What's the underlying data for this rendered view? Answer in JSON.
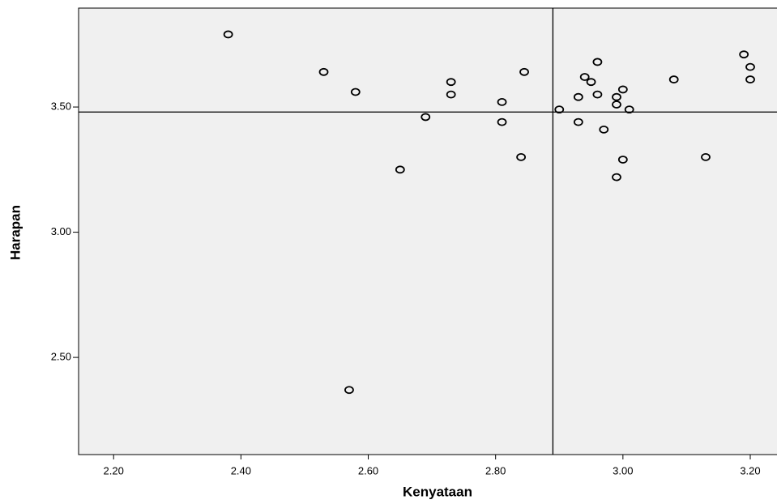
{
  "chart_data": {
    "type": "scatter",
    "x_label": "Kenyataan",
    "y_label": "Harapan",
    "x": [
      2.38,
      2.53,
      2.58,
      2.73,
      2.73,
      2.69,
      2.65,
      2.57,
      2.81,
      2.81,
      2.845,
      2.84,
      2.9,
      2.96,
      2.94,
      2.95,
      2.93,
      2.96,
      2.93,
      2.97,
      2.99,
      2.99,
      3.0,
      3.01,
      3.0,
      2.99,
      3.08,
      3.13,
      3.19,
      3.2,
      3.2
    ],
    "values": [
      3.79,
      3.64,
      3.56,
      3.6,
      3.55,
      3.46,
      3.25,
      2.37,
      3.52,
      3.44,
      3.64,
      3.3,
      3.49,
      3.68,
      3.62,
      3.6,
      3.54,
      3.55,
      3.44,
      3.41,
      3.54,
      3.51,
      3.57,
      3.49,
      3.29,
      3.22,
      3.61,
      3.3,
      3.71,
      3.66,
      3.61
    ],
    "marker_color": "#000000",
    "plot_background": "#f0f0f0",
    "reference_lines": {
      "x": 2.89,
      "y": 3.48
    },
    "xlim": [
      2.145,
      3.242
    ],
    "ylim": [
      2.112,
      3.895
    ],
    "xticks": [
      {
        "value": 2.2,
        "label": "2.20"
      },
      {
        "value": 2.4,
        "label": "2.40"
      },
      {
        "value": 2.6,
        "label": "2.60"
      },
      {
        "value": 2.8,
        "label": "2.80"
      },
      {
        "value": 3.0,
        "label": "3.00"
      },
      {
        "value": 3.2,
        "label": "3.20"
      }
    ],
    "yticks": [
      {
        "value": 2.5,
        "label": "2.50"
      },
      {
        "value": 3.0,
        "label": "3.00"
      },
      {
        "value": 3.5,
        "label": "3.50"
      }
    ]
  }
}
